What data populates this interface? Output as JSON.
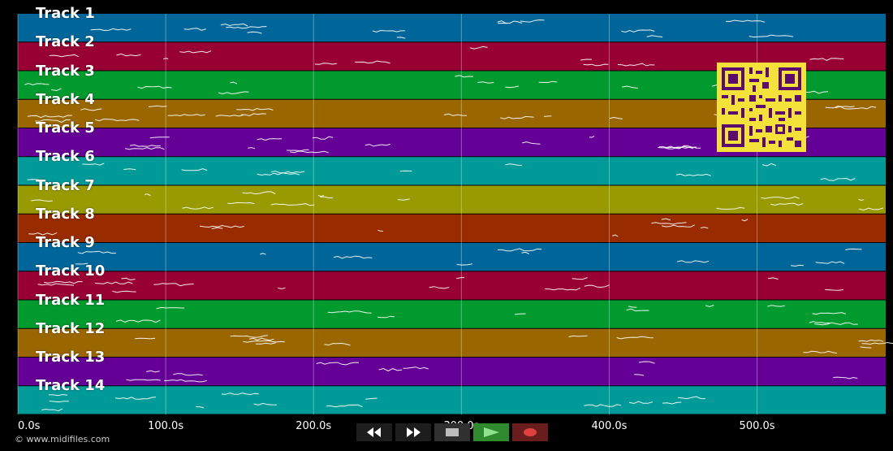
{
  "tracks": [
    {
      "label": "Track 1",
      "color": "#00669a"
    },
    {
      "label": "Track 2",
      "color": "#980033"
    },
    {
      "label": "Track 3",
      "color": "#009a2e"
    },
    {
      "label": "Track 4",
      "color": "#9a6600"
    },
    {
      "label": "Track 5",
      "color": "#650096"
    },
    {
      "label": "Track 6",
      "color": "#009a98"
    },
    {
      "label": "Track 7",
      "color": "#989a00"
    },
    {
      "label": "Track 8",
      "color": "#982b00"
    },
    {
      "label": "Track 9",
      "color": "#00669a"
    },
    {
      "label": "Track 10",
      "color": "#980033"
    },
    {
      "label": "Track 11",
      "color": "#009a2e"
    },
    {
      "label": "Track 12",
      "color": "#9a6600"
    },
    {
      "label": "Track 13",
      "color": "#650096"
    },
    {
      "label": "Track 14",
      "color": "#009a98"
    }
  ],
  "timeline": {
    "ticks": [
      "0.0s",
      "100.0s",
      "200.0s",
      "300.0s",
      "400.0s",
      "500.0s"
    ],
    "tick_values": [
      0,
      100,
      200,
      300,
      400,
      500
    ],
    "max_seconds": 587
  },
  "copyright": "© www.midifiles.com",
  "controls": {
    "rewind": "rewind-icon",
    "fast_forward": "fast-forward-icon",
    "stop": "stop-icon",
    "play": "play-icon",
    "record": "record-icon"
  },
  "qr_color": "#f4e23a"
}
